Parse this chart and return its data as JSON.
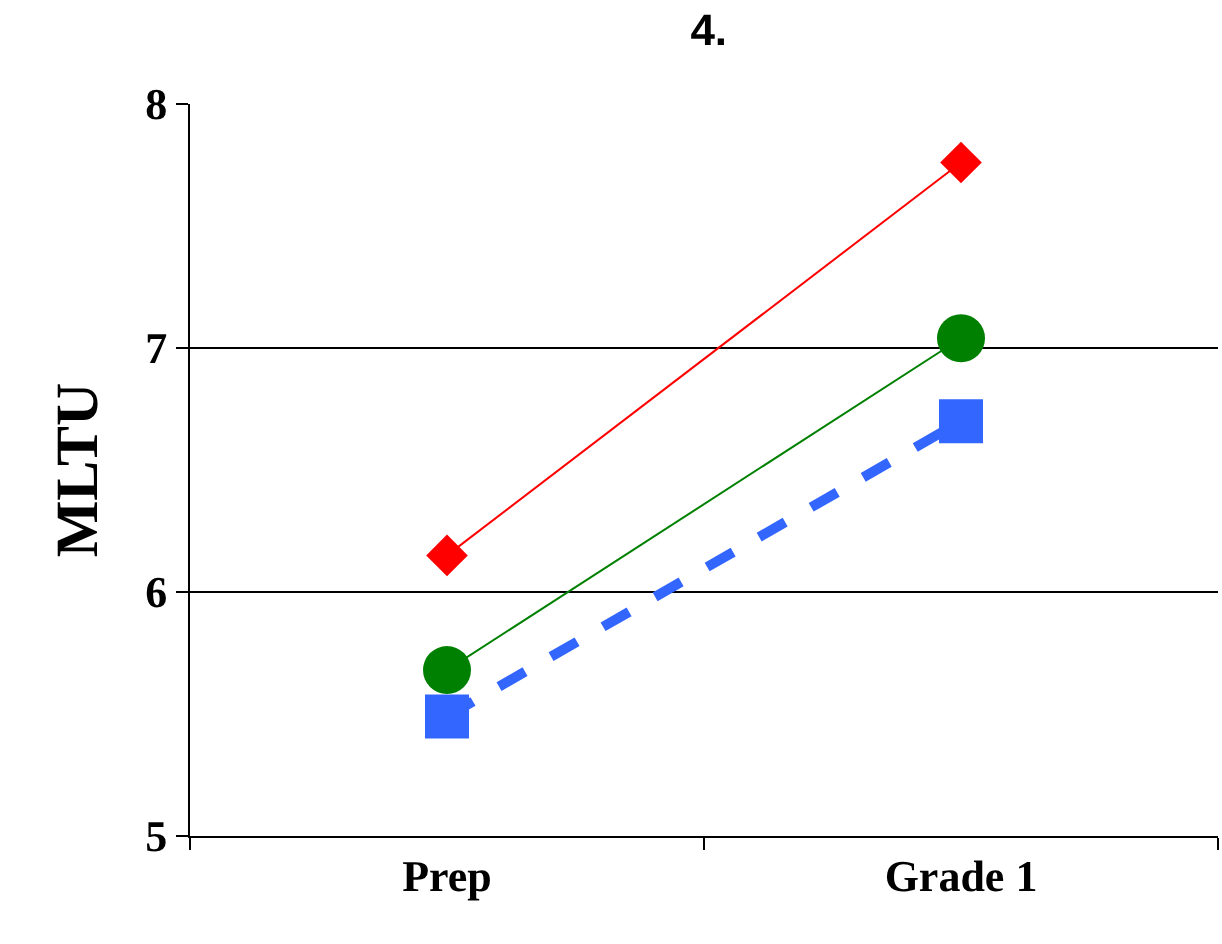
{
  "chart_data": {
    "type": "line",
    "title": "4.",
    "ylabel": "MLTU",
    "categories": [
      "Prep",
      "Grade 1"
    ],
    "series": [
      {
        "color": "#ff0000",
        "values": [
          6.15,
          7.76
        ],
        "marker": "diamond",
        "line_style": "solid"
      },
      {
        "color": "#008000",
        "values": [
          5.68,
          7.04
        ],
        "marker": "circle",
        "line_style": "solid"
      },
      {
        "color": "#3366ff",
        "values": [
          5.49,
          6.7
        ],
        "marker": "square",
        "line_style": "dashed"
      }
    ],
    "ylim": [
      5,
      8
    ],
    "yticks": [
      5,
      6,
      7,
      8
    ],
    "grid": "y"
  }
}
